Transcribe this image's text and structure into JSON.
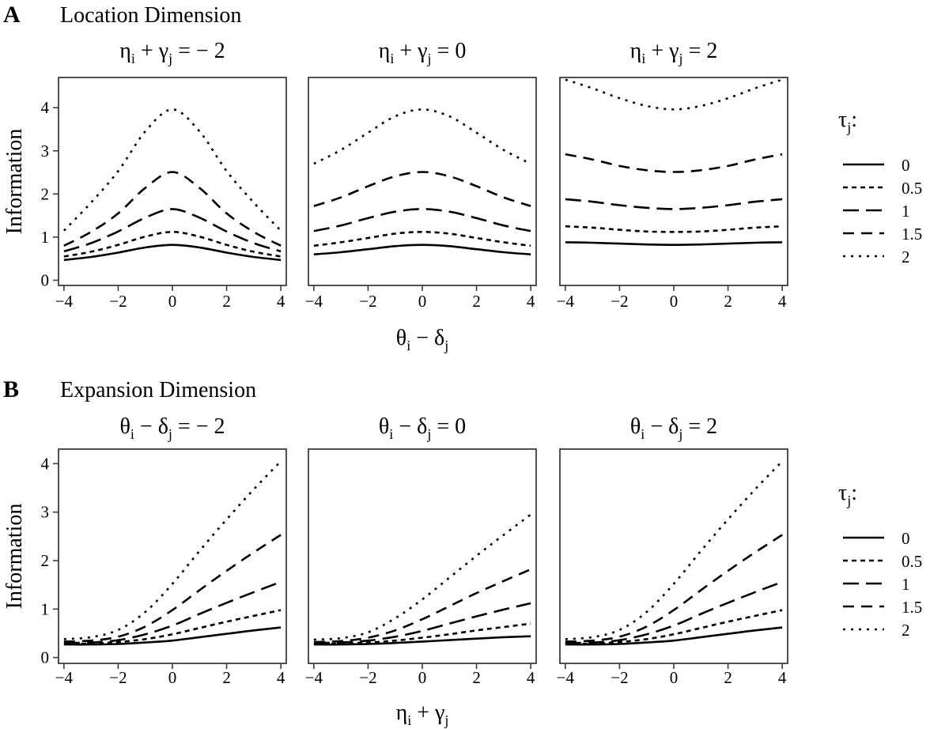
{
  "figure": {
    "legend": {
      "title_base": "τ",
      "title_sub": "j",
      "title_tail": ":",
      "entries": [
        "0",
        "0.5",
        "1",
        "1.5",
        "2"
      ],
      "dash_styles": [
        "solid",
        "dotted-dense",
        "dashed-long",
        "dashed-short",
        "dotted"
      ],
      "position": "right"
    },
    "line_color": "#000000",
    "frame_color": "#3c3c3c"
  },
  "chart_data": [
    {
      "type": "line",
      "panel_letter": "A",
      "heading": "Location Dimension",
      "ylabel": "Information",
      "xlabel": {
        "a": "θ",
        "a_sub": "i",
        "op": " − ",
        "b": "δ",
        "b_sub": "j"
      },
      "x_ticks": [
        "−4",
        "−2",
        "0",
        "2",
        "4"
      ],
      "y_ticks": [
        "0",
        "1",
        "2",
        "3",
        "4"
      ],
      "xlim": [
        -4.2,
        4.2
      ],
      "ylim": [
        -0.12,
        4.7
      ],
      "x": [
        -4,
        -3,
        -2,
        -1,
        0,
        1,
        2,
        3,
        4
      ],
      "facets": [
        {
          "title": {
            "a": "η",
            "a_sub": "i",
            "op": " + ",
            "b": "γ",
            "b_sub": "j",
            "rhs": " = − 2"
          },
          "series": [
            {
              "tau": "0",
              "values": [
                0.47,
                0.54,
                0.64,
                0.76,
                0.82,
                0.76,
                0.64,
                0.54,
                0.47
              ]
            },
            {
              "tau": "0.5",
              "values": [
                0.55,
                0.66,
                0.82,
                1.01,
                1.12,
                1.01,
                0.82,
                0.66,
                0.55
              ]
            },
            {
              "tau": "1",
              "values": [
                0.67,
                0.86,
                1.13,
                1.45,
                1.65,
                1.45,
                1.13,
                0.86,
                0.67
              ]
            },
            {
              "tau": "1.5",
              "values": [
                0.8,
                1.12,
                1.55,
                2.14,
                2.51,
                2.14,
                1.55,
                1.12,
                0.8
              ]
            },
            {
              "tau": "2",
              "values": [
                1.15,
                1.8,
                2.53,
                3.45,
                3.96,
                3.45,
                2.53,
                1.8,
                1.15
              ]
            }
          ]
        },
        {
          "title": {
            "a": "η",
            "a_sub": "i",
            "op": " + ",
            "b": "γ",
            "b_sub": "j",
            "rhs": " = 0"
          },
          "series": [
            {
              "tau": "0",
              "values": [
                0.6,
                0.65,
                0.72,
                0.79,
                0.82,
                0.79,
                0.72,
                0.65,
                0.6
              ]
            },
            {
              "tau": "0.5",
              "values": [
                0.8,
                0.88,
                0.98,
                1.08,
                1.12,
                1.08,
                0.98,
                0.88,
                0.8
              ]
            },
            {
              "tau": "1",
              "values": [
                1.14,
                1.27,
                1.44,
                1.59,
                1.65,
                1.59,
                1.44,
                1.27,
                1.14
              ]
            },
            {
              "tau": "1.5",
              "values": [
                1.72,
                1.92,
                2.18,
                2.41,
                2.51,
                2.41,
                2.18,
                1.92,
                1.72
              ]
            },
            {
              "tau": "2",
              "values": [
                2.7,
                3.02,
                3.42,
                3.8,
                3.96,
                3.8,
                3.42,
                3.02,
                2.7
              ]
            }
          ]
        },
        {
          "title": {
            "a": "η",
            "a_sub": "i",
            "op": " + ",
            "b": "γ",
            "b_sub": "j",
            "rhs": " = 2"
          },
          "series": [
            {
              "tau": "0",
              "values": [
                0.88,
                0.87,
                0.85,
                0.83,
                0.82,
                0.83,
                0.85,
                0.87,
                0.88
              ]
            },
            {
              "tau": "0.5",
              "values": [
                1.25,
                1.22,
                1.17,
                1.13,
                1.12,
                1.13,
                1.17,
                1.22,
                1.25
              ]
            },
            {
              "tau": "1",
              "values": [
                1.88,
                1.82,
                1.74,
                1.68,
                1.65,
                1.68,
                1.74,
                1.82,
                1.88
              ]
            },
            {
              "tau": "1.5",
              "values": [
                2.92,
                2.8,
                2.65,
                2.55,
                2.51,
                2.55,
                2.65,
                2.8,
                2.92
              ]
            },
            {
              "tau": "2",
              "values": [
                4.65,
                4.45,
                4.22,
                4.04,
                3.96,
                4.04,
                4.22,
                4.45,
                4.65
              ]
            }
          ]
        }
      ]
    },
    {
      "type": "line",
      "panel_letter": "B",
      "heading": "Expansion Dimension",
      "ylabel": "Information",
      "xlabel": {
        "a": "η",
        "a_sub": "i",
        "op": " + ",
        "b": "γ",
        "b_sub": "j"
      },
      "x_ticks": [
        "−4",
        "−2",
        "0",
        "2",
        "4"
      ],
      "y_ticks": [
        "0",
        "1",
        "2",
        "3",
        "4"
      ],
      "xlim": [
        -4.2,
        4.2
      ],
      "ylim": [
        -0.12,
        4.3
      ],
      "x": [
        -4,
        -3,
        -2,
        -1,
        0,
        1,
        2,
        3,
        4
      ],
      "facets": [
        {
          "title": {
            "a": "θ",
            "a_sub": "i",
            "op": " − ",
            "b": "δ",
            "b_sub": "j",
            "rhs": " = − 2"
          },
          "series": [
            {
              "tau": "0",
              "values": [
                0.27,
                0.27,
                0.28,
                0.31,
                0.35,
                0.42,
                0.49,
                0.56,
                0.62
              ]
            },
            {
              "tau": "0.5",
              "values": [
                0.28,
                0.29,
                0.32,
                0.38,
                0.48,
                0.61,
                0.74,
                0.86,
                0.98
              ]
            },
            {
              "tau": "1",
              "values": [
                0.3,
                0.31,
                0.36,
                0.48,
                0.66,
                0.9,
                1.13,
                1.35,
                1.56
              ]
            },
            {
              "tau": "1.5",
              "values": [
                0.33,
                0.35,
                0.43,
                0.64,
                0.98,
                1.39,
                1.79,
                2.17,
                2.53
              ]
            },
            {
              "tau": "2",
              "values": [
                0.38,
                0.42,
                0.57,
                0.94,
                1.52,
                2.2,
                2.85,
                3.47,
                4.05
              ]
            }
          ]
        },
        {
          "title": {
            "a": "θ",
            "a_sub": "i",
            "op": " − ",
            "b": "δ",
            "b_sub": "j",
            "rhs": " = 0"
          },
          "series": [
            {
              "tau": "0",
              "values": [
                0.27,
                0.27,
                0.28,
                0.3,
                0.33,
                0.36,
                0.39,
                0.42,
                0.44
              ]
            },
            {
              "tau": "0.5",
              "values": [
                0.28,
                0.29,
                0.31,
                0.35,
                0.41,
                0.48,
                0.56,
                0.63,
                0.7
              ]
            },
            {
              "tau": "1",
              "values": [
                0.3,
                0.31,
                0.35,
                0.43,
                0.55,
                0.7,
                0.85,
                0.99,
                1.12
              ]
            },
            {
              "tau": "1.5",
              "values": [
                0.32,
                0.34,
                0.41,
                0.56,
                0.79,
                1.06,
                1.33,
                1.58,
                1.82
              ]
            },
            {
              "tau": "2",
              "values": [
                0.37,
                0.4,
                0.52,
                0.81,
                1.2,
                1.65,
                2.1,
                2.53,
                2.95
              ]
            }
          ]
        },
        {
          "title": {
            "a": "θ",
            "a_sub": "i",
            "op": " − ",
            "b": "δ",
            "b_sub": "j",
            "rhs": " = 2"
          },
          "series": [
            {
              "tau": "0",
              "values": [
                0.27,
                0.27,
                0.28,
                0.31,
                0.35,
                0.42,
                0.49,
                0.56,
                0.62
              ]
            },
            {
              "tau": "0.5",
              "values": [
                0.28,
                0.29,
                0.32,
                0.38,
                0.48,
                0.61,
                0.74,
                0.86,
                0.98
              ]
            },
            {
              "tau": "1",
              "values": [
                0.3,
                0.31,
                0.36,
                0.48,
                0.66,
                0.9,
                1.13,
                1.35,
                1.56
              ]
            },
            {
              "tau": "1.5",
              "values": [
                0.33,
                0.35,
                0.43,
                0.64,
                0.98,
                1.39,
                1.79,
                2.17,
                2.53
              ]
            },
            {
              "tau": "2",
              "values": [
                0.38,
                0.42,
                0.57,
                0.94,
                1.52,
                2.2,
                2.85,
                3.47,
                4.05
              ]
            }
          ]
        }
      ]
    }
  ]
}
